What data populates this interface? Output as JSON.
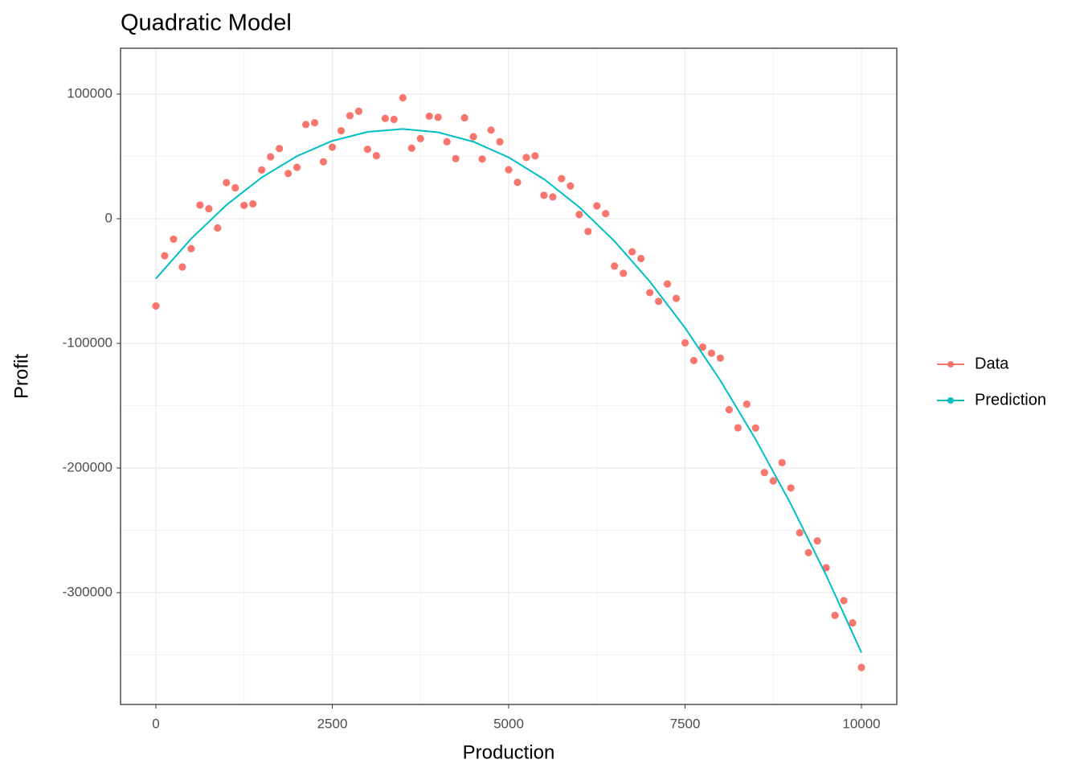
{
  "chart_data": {
    "type": "scatter",
    "title": "Quadratic Model",
    "x_label": "Production",
    "y_label": "Profit",
    "xlim": [
      -501,
      10501
    ],
    "ylim": [
      -389677,
      136774
    ],
    "xticks": [
      0,
      2500,
      5000,
      7500,
      10000
    ],
    "yticks": [
      -300000,
      -200000,
      -100000,
      0,
      100000
    ],
    "grid": true,
    "minor_grid": true,
    "legend": "right",
    "series": [
      {
        "name": "Data",
        "color": "#F8766D",
        "mode": "points",
        "x": [
          0,
          250,
          500,
          750,
          1000,
          1250,
          1500,
          1750,
          2000,
          2250,
          2500,
          2750,
          3000,
          3250,
          3500,
          3750,
          4000,
          4250,
          4500,
          4750,
          5000,
          5250,
          5500,
          5750,
          6000,
          6250,
          6500,
          6750,
          7000,
          7250,
          7500,
          7750,
          8000,
          8250,
          8500,
          8750,
          9000,
          9250,
          9500,
          9750,
          10000,
          125,
          375,
          625,
          875,
          1125,
          1375,
          1625,
          1875,
          2125,
          2375,
          2625,
          2875,
          3125,
          3375,
          3625,
          3875,
          4125,
          4375,
          4625,
          4875,
          5125,
          5375,
          5625,
          5875,
          6125,
          6375,
          6625,
          6875,
          7125,
          7375,
          7625,
          7875,
          8125,
          8375,
          8625,
          8875,
          9125,
          9375,
          9625,
          9875
        ],
        "values": [
          -70000,
          -16400,
          -24000,
          8100,
          29000,
          10700,
          39100,
          56300,
          41200,
          77000,
          57400,
          82700,
          55700,
          80500,
          97000,
          64300,
          81400,
          48200,
          65800,
          71100,
          39300,
          49100,
          18800,
          32200,
          3400,
          10300,
          -38000,
          -26500,
          -59300,
          -52300,
          -99600,
          -103000,
          -111800,
          -167700,
          -167900,
          -210300,
          -216000,
          -267900,
          -280000,
          -306400,
          -360000,
          -29700,
          -38700,
          11000,
          -7400,
          24800,
          11900,
          49700,
          36300,
          75600,
          45700,
          70600,
          86200,
          50600,
          79700,
          56600,
          82300,
          61800,
          81000,
          47900,
          61700,
          29200,
          50400,
          17500,
          26300,
          -10200,
          4100,
          -43800,
          -31900,
          -66300,
          -63900,
          -113800,
          -107900,
          -153200,
          -148800,
          -203600,
          -195700,
          -251900,
          -258500,
          -318200,
          -324200
        ]
      },
      {
        "name": "Prediction",
        "color": "#00BFC4",
        "mode": "line",
        "x": [
          0,
          500,
          1000,
          1500,
          2000,
          2500,
          3000,
          3500,
          4000,
          4500,
          5000,
          5500,
          6000,
          6500,
          7000,
          7500,
          8000,
          8500,
          9000,
          9500,
          10000
        ],
        "values": [
          -48000,
          -16022,
          11010,
          33097,
          50240,
          62437,
          69690,
          71997,
          69360,
          61777,
          49250,
          31777,
          9360,
          -18003,
          -50310,
          -87563,
          -129760,
          -176903,
          -228990,
          -286023,
          -348000
        ]
      }
    ]
  }
}
